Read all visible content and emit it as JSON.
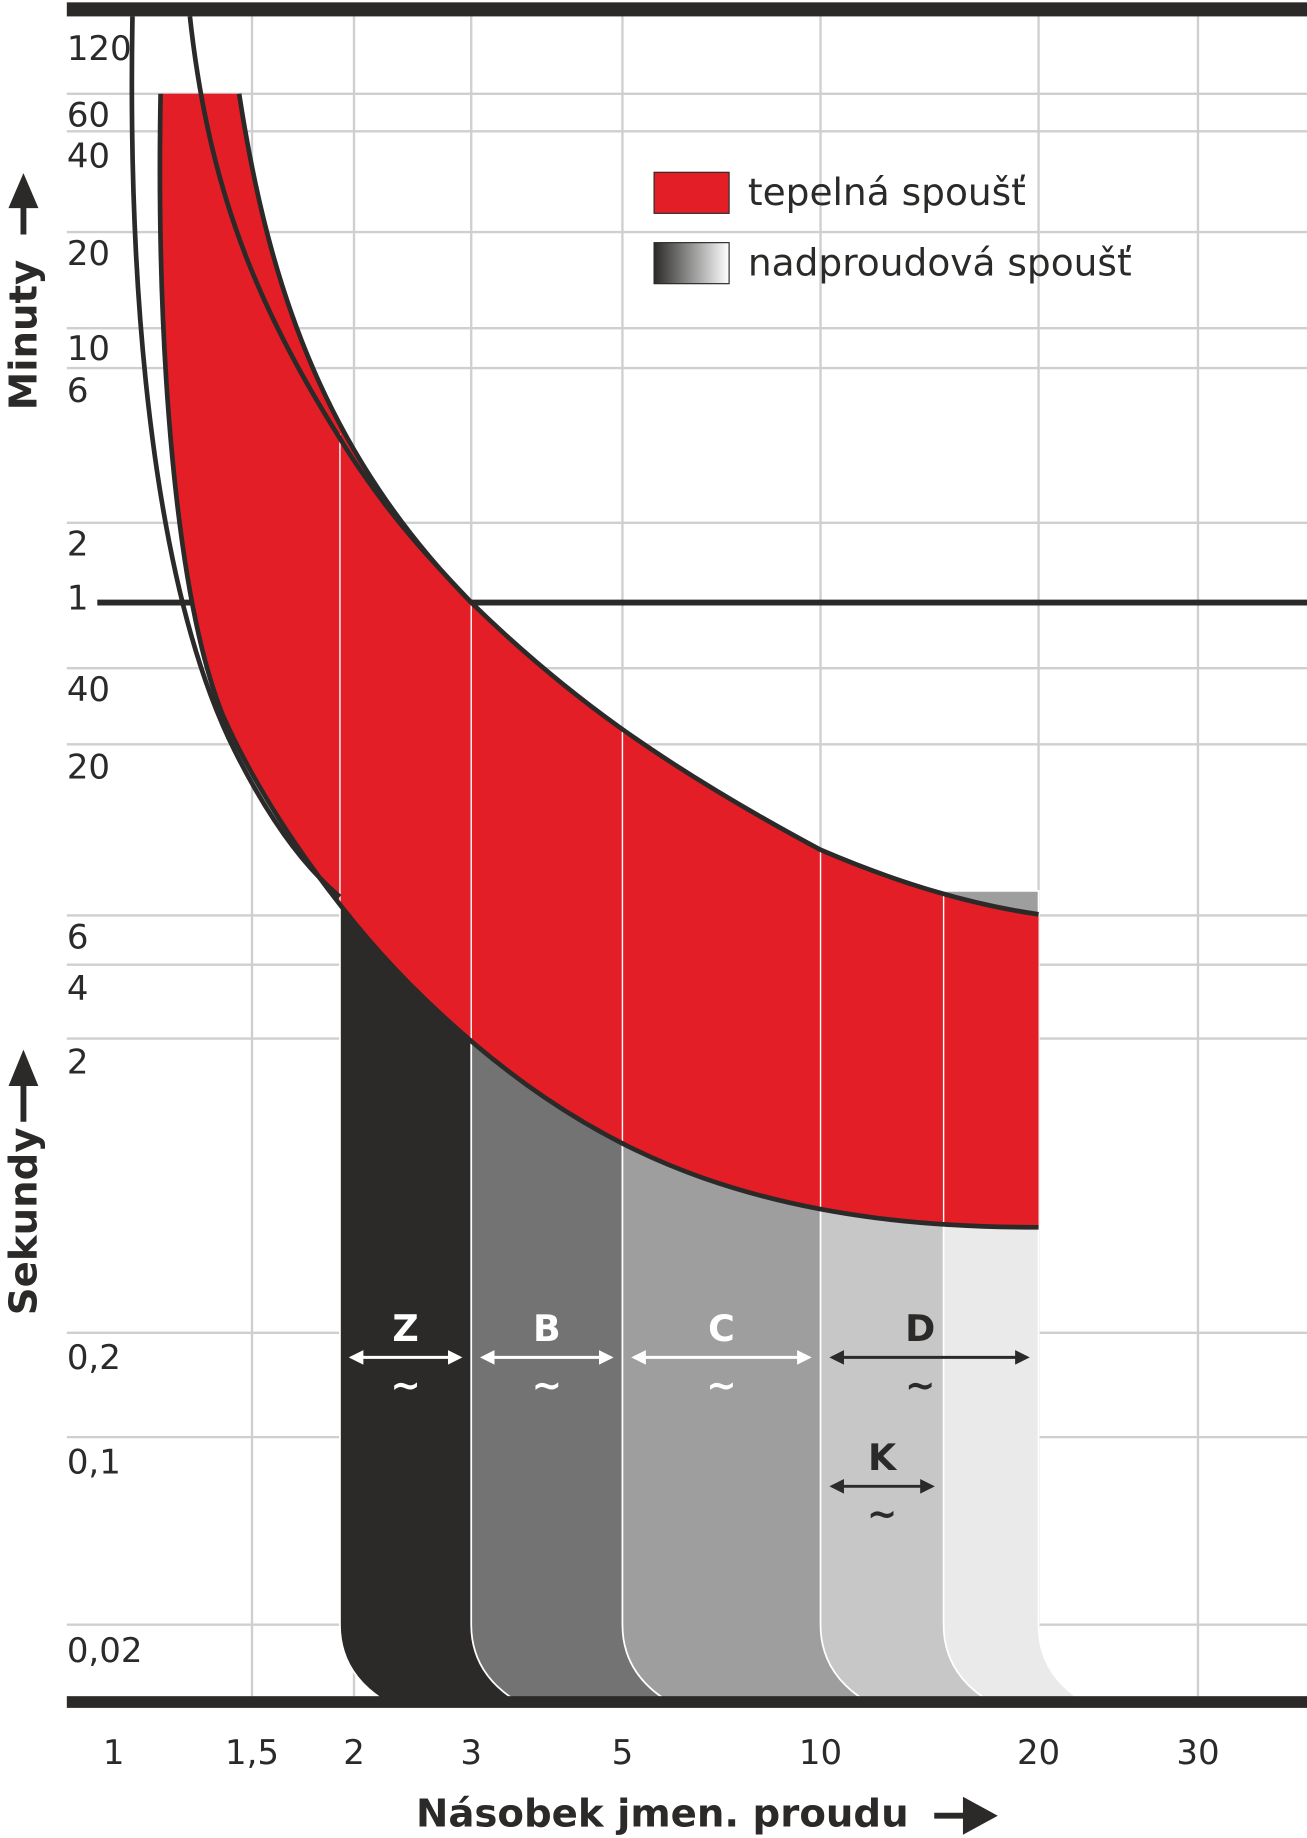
{
  "chart_data": {
    "type": "area",
    "title": "",
    "xlabel": "Násobek jmen. proudu",
    "ylabel_minutes": "Minuty",
    "ylabel_seconds": "Sekundy",
    "x_scale": "log",
    "x_ticks": [
      {
        "value": 1,
        "label": "1"
      },
      {
        "value": 1.5,
        "label": "1,5"
      },
      {
        "value": 2,
        "label": "2"
      },
      {
        "value": 3,
        "label": "3"
      },
      {
        "value": 5,
        "label": "5"
      },
      {
        "value": 10,
        "label": "10"
      },
      {
        "value": 20,
        "label": "20"
      },
      {
        "value": 30,
        "label": "30"
      }
    ],
    "y_ticks_minutes": [
      "120",
      "60",
      "40",
      "20",
      "10",
      "6",
      "2",
      "1"
    ],
    "y_ticks_seconds": [
      "40",
      "20",
      "6",
      "4",
      "2",
      "0,2",
      "0,1",
      "0,02"
    ],
    "grid": true,
    "legend_position": "top-right",
    "legend": [
      {
        "label": "tepelná spoušť",
        "color": "#e31e26"
      },
      {
        "label": "nadproudová spoušť",
        "gradient": [
          "#2b2a29",
          "#ffffff"
        ]
      }
    ],
    "thermal_band": {
      "color": "#e31e26",
      "x_range": [
        1.2,
        20
      ],
      "time_top": "60 min"
    },
    "magnetic_bands": [
      {
        "from": 2,
        "to": 3,
        "color": "#2b2a29"
      },
      {
        "from": 3,
        "to": 5,
        "color": "#737373"
      },
      {
        "from": 5,
        "to": 10,
        "color": "#9d9e9d"
      },
      {
        "from": 10,
        "to": 14,
        "color": "#c6c7c6"
      },
      {
        "from": 14,
        "to": 20,
        "color": "#e9eae9"
      }
    ],
    "trip_classes": [
      {
        "name": "Z",
        "from": 2,
        "to": 3,
        "symbol": "~",
        "color": "#ffffff",
        "row": 1
      },
      {
        "name": "B",
        "from": 3,
        "to": 5,
        "symbol": "~",
        "color": "#ffffff",
        "row": 1
      },
      {
        "name": "C",
        "from": 5,
        "to": 10,
        "symbol": "~",
        "color": "#ffffff",
        "row": 1
      },
      {
        "name": "D",
        "from": 10,
        "to": 20,
        "symbol": "~",
        "color": "#2b2a29",
        "row": 1
      },
      {
        "name": "K",
        "from": 10,
        "to": 14,
        "symbol": "~",
        "color": "#2b2a29",
        "row": 2
      }
    ]
  }
}
